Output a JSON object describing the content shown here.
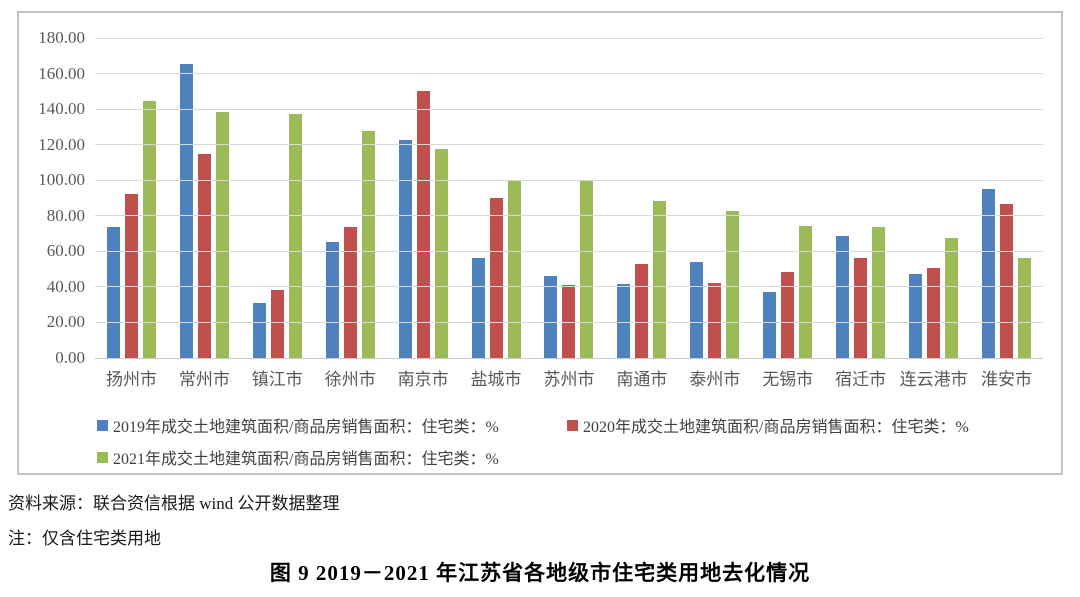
{
  "chart_data": {
    "type": "bar",
    "categories": [
      "扬州市",
      "常州市",
      "镇江市",
      "徐州市",
      "南京市",
      "盐城市",
      "苏州市",
      "南通市",
      "泰州市",
      "无锡市",
      "宿迁市",
      "连云港市",
      "淮安市"
    ],
    "series": [
      {
        "name": "2019年成交土地建筑面积/商品房销售面积：住宅类：%",
        "color": "#4F81BD",
        "values": [
          73.5,
          165.5,
          31.0,
          65.5,
          122.5,
          56.5,
          46.0,
          41.5,
          54.0,
          37.0,
          68.5,
          47.5,
          95.0
        ]
      },
      {
        "name": "2020年成交土地建筑面积/商品房销售面积：住宅类：%",
        "color": "#C0504D",
        "values": [
          92.0,
          115.0,
          38.0,
          73.5,
          150.0,
          90.0,
          41.0,
          53.0,
          42.0,
          48.5,
          56.0,
          50.5,
          86.5
        ]
      },
      {
        "name": "2021年成交土地建筑面积/商品房销售面积：住宅类：%",
        "color": "#9BBB59",
        "values": [
          144.5,
          138.5,
          137.5,
          127.5,
          117.5,
          100.0,
          99.5,
          88.5,
          82.5,
          74.0,
          73.5,
          67.5,
          56.5
        ]
      }
    ],
    "ylim": [
      0,
      180
    ],
    "ytick_step": 20,
    "ytick_format_decimals": 2,
    "grid": true,
    "legend_position": "bottom",
    "gridline_color": "#d9d9d9"
  },
  "notes": {
    "source": "资料来源：联合资信根据 wind 公开数据整理",
    "note": "注：仅含住宅类用地"
  },
  "caption": "图 9  2019－2021 年江苏省各地级市住宅类用地去化情况"
}
